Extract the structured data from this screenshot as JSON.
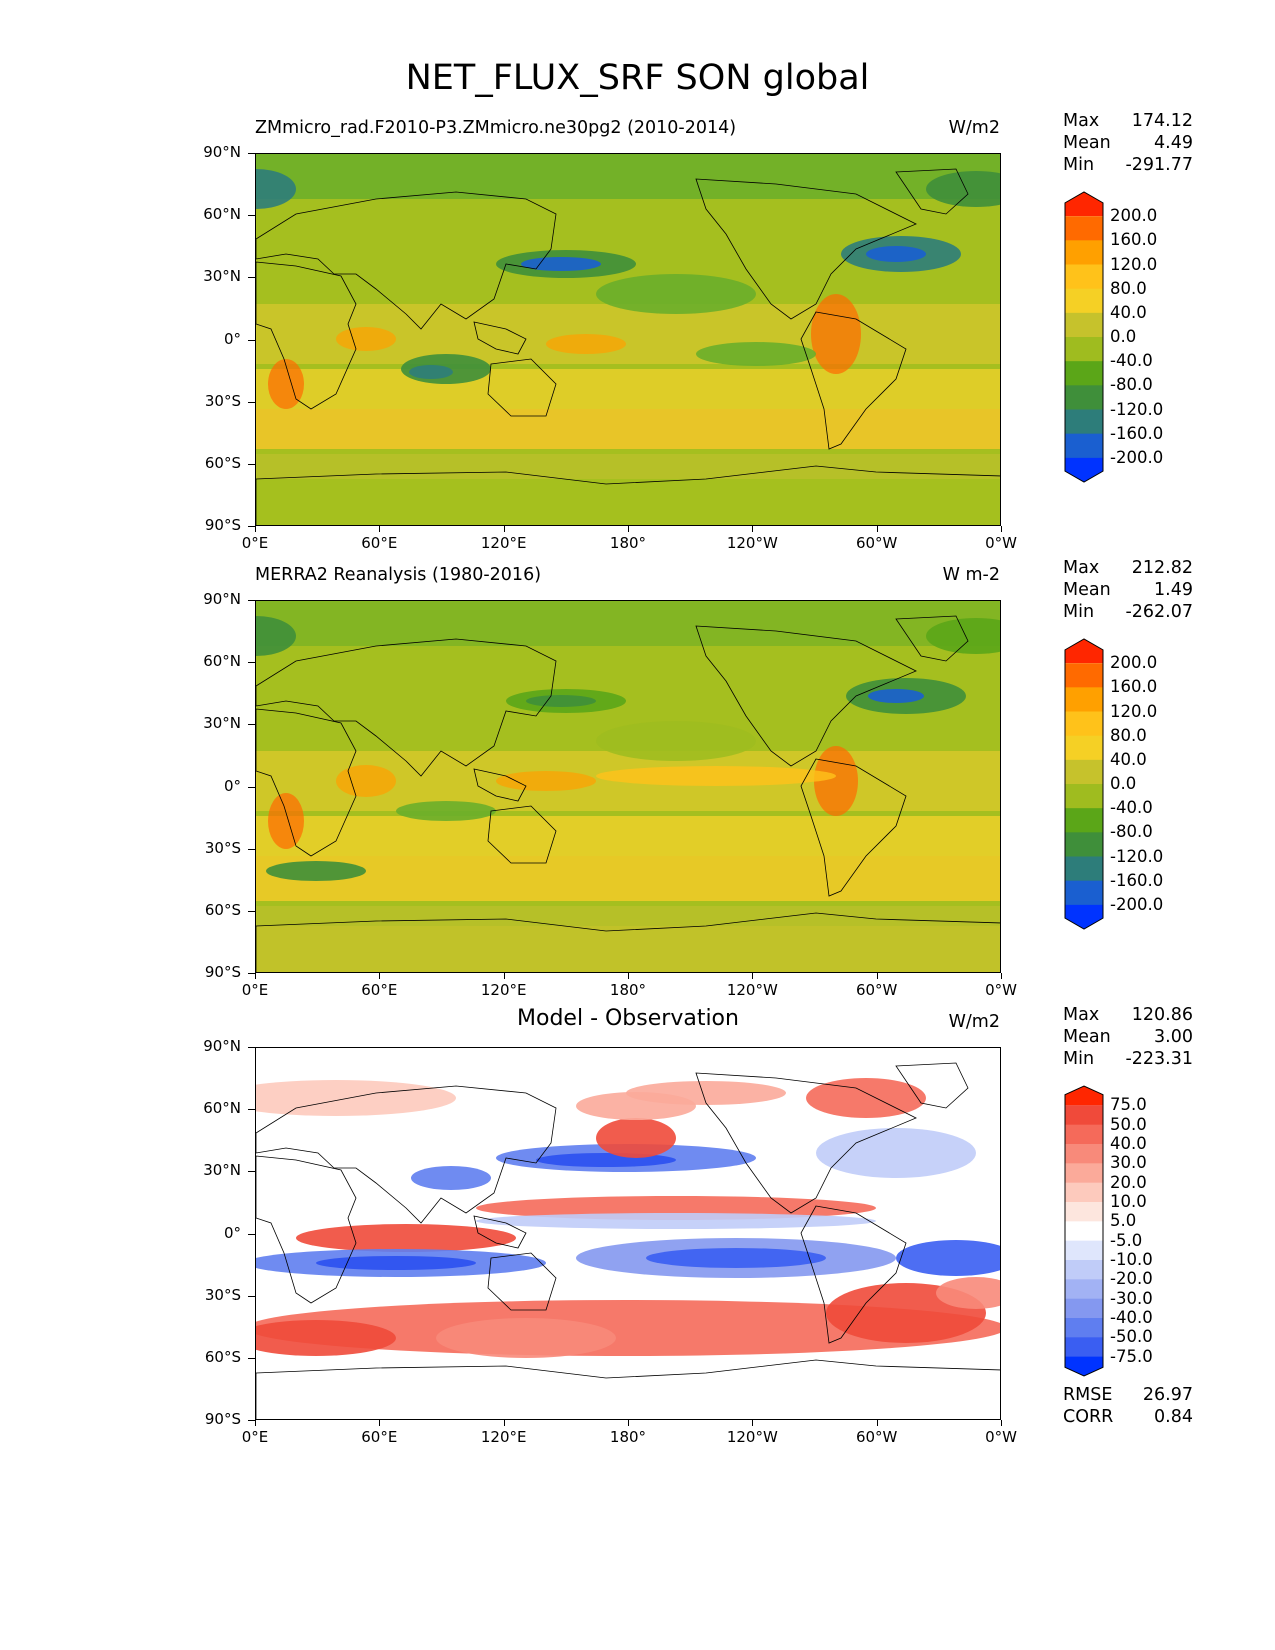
{
  "title": "NET_FLUX_SRF SON global",
  "lat_labels": [
    "90°N",
    "60°N",
    "30°N",
    "0°",
    "30°S",
    "60°S",
    "90°S"
  ],
  "lon_labels": [
    "0°E",
    "60°E",
    "120°E",
    "180°",
    "120°W",
    "60°W",
    "0°W"
  ],
  "panels": [
    {
      "left_title": "ZMmicro_rad.F2010-P3.ZMmicro.ne30pg2 (2010-2014)",
      "center_title": "",
      "units": "W/m2",
      "stats": [
        [
          "Max",
          "174.12"
        ],
        [
          "Mean",
          "4.49"
        ],
        [
          "Min",
          "-291.77"
        ]
      ],
      "colorbar_labels": [
        "200.0",
        "160.0",
        "120.0",
        "80.0",
        "40.0",
        "0.0",
        "-40.0",
        "-80.0",
        "-120.0",
        "-160.0",
        "-200.0"
      ],
      "colorbar_colors": [
        "#ff2600",
        "#ff6a00",
        "#ffa000",
        "#ffc21a",
        "#f5d025",
        "#c6c22c",
        "#9fbc1f",
        "#5ba618",
        "#3f8f3a",
        "#2d7d7a",
        "#1a5fd0",
        "#0033ff"
      ]
    },
    {
      "left_title": "MERRA2 Reanalysis (1980-2016)",
      "center_title": "",
      "units": "W m-2",
      "stats": [
        [
          "Max",
          "212.82"
        ],
        [
          "Mean",
          "1.49"
        ],
        [
          "Min",
          "-262.07"
        ]
      ],
      "colorbar_labels": [
        "200.0",
        "160.0",
        "120.0",
        "80.0",
        "40.0",
        "0.0",
        "-40.0",
        "-80.0",
        "-120.0",
        "-160.0",
        "-200.0"
      ],
      "colorbar_colors": [
        "#ff2600",
        "#ff6a00",
        "#ffa000",
        "#ffc21a",
        "#f5d025",
        "#c6c22c",
        "#9fbc1f",
        "#5ba618",
        "#3f8f3a",
        "#2d7d7a",
        "#1a5fd0",
        "#0033ff"
      ]
    },
    {
      "left_title": "",
      "center_title": "Model - Observation",
      "units": "W/m2",
      "stats": [
        [
          "Max",
          "120.86"
        ],
        [
          "Mean",
          "3.00"
        ],
        [
          "Min",
          "-223.31"
        ]
      ],
      "extra_stats": [
        [
          "RMSE",
          "26.97"
        ],
        [
          "CORR",
          "0.84"
        ]
      ],
      "colorbar_labels": [
        "75.0",
        "50.0",
        "40.0",
        "30.0",
        "20.0",
        "10.0",
        "5.0",
        "-5.0",
        "-10.0",
        "-20.0",
        "-30.0",
        "-40.0",
        "-50.0",
        "-75.0"
      ],
      "colorbar_colors": [
        "#ff2600",
        "#f04a3a",
        "#f56a5a",
        "#f88a7a",
        "#fbaa9a",
        "#fdcabd",
        "#fde6de",
        "#ffffff",
        "#dfe6fc",
        "#c0ccf8",
        "#a2b2f4",
        "#8498f0",
        "#5f7ef0",
        "#3a5ef2",
        "#0033ff"
      ]
    }
  ]
}
